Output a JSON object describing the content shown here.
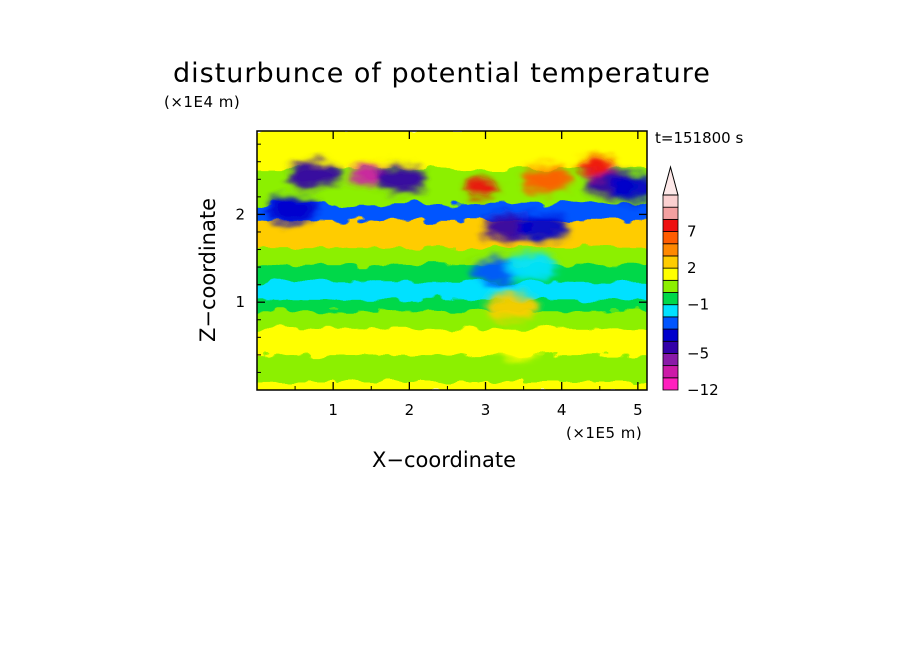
{
  "chart_data": {
    "type": "heatmap",
    "title": "disturbunce of potential temperature",
    "xlabel": "X−coordinate",
    "ylabel": "Z−coordinate",
    "x_unit": "(×1E5 m)",
    "y_unit": "(×1E4 m)",
    "time_label": "t=151800 s",
    "xlim": [
      0,
      5.12
    ],
    "ylim": [
      0,
      2.95
    ],
    "x_ticks": [
      {
        "value": 1,
        "label": "1"
      },
      {
        "value": 2,
        "label": "2"
      },
      {
        "value": 3,
        "label": "3"
      },
      {
        "value": 4,
        "label": "4"
      },
      {
        "value": 5,
        "label": "5"
      }
    ],
    "y_ticks": [
      {
        "value": 1,
        "label": "1"
      },
      {
        "value": 2,
        "label": "2"
      }
    ],
    "colorbar": {
      "levels": [
        -12,
        -10,
        -7,
        -5,
        -4,
        -3,
        -2,
        -1,
        0,
        1,
        2,
        3,
        5,
        7,
        9,
        11
      ],
      "colors": [
        "#ff1fbe",
        "#cc1aa8",
        "#8a1aa8",
        "#3300a8",
        "#0000cc",
        "#0055ff",
        "#00e1ff",
        "#00d84a",
        "#8cf000",
        "#ffff00",
        "#ffcc00",
        "#ff8800",
        "#ff5c00",
        "#ee1010",
        "#f4a0a0",
        "#fbd0d0"
      ],
      "extend": "max",
      "labels": [
        {
          "value": -12,
          "text": "−12"
        },
        {
          "value": -5,
          "text": "−5"
        },
        {
          "value": -1,
          "text": "−1"
        },
        {
          "value": 2,
          "text": "2"
        },
        {
          "value": 7,
          "text": "7"
        }
      ]
    },
    "bands_z": [
      {
        "z": [
          0.0,
          0.12
        ],
        "value": 1.5
      },
      {
        "z": [
          0.12,
          0.42
        ],
        "value": 0.5
      },
      {
        "z": [
          0.42,
          0.72
        ],
        "value": 1.5
      },
      {
        "z": [
          0.72,
          0.92
        ],
        "value": 0.5
      },
      {
        "z": [
          0.92,
          1.05
        ],
        "value": -0.7
      },
      {
        "z": [
          1.05,
          1.25
        ],
        "value": -1.5
      },
      {
        "z": [
          1.25,
          1.45
        ],
        "value": -0.5
      },
      {
        "z": [
          1.45,
          1.65
        ],
        "value": 0.5
      },
      {
        "z": [
          1.65,
          1.95
        ],
        "value": 2.5
      },
      {
        "z": [
          1.95,
          2.15
        ],
        "value": -2.5
      },
      {
        "z": [
          2.15,
          2.55
        ],
        "value": 0.5
      },
      {
        "z": [
          2.55,
          2.95
        ],
        "value": 1.5
      }
    ],
    "features": [
      {
        "x": 0.75,
        "z": 2.45,
        "value": -5
      },
      {
        "x": 1.45,
        "z": 2.45,
        "value": -8
      },
      {
        "x": 1.9,
        "z": 2.4,
        "value": -5
      },
      {
        "x": 0.45,
        "z": 2.05,
        "value": -4
      },
      {
        "x": 4.65,
        "z": 2.35,
        "value": -5
      },
      {
        "x": 4.95,
        "z": 2.3,
        "value": -4
      },
      {
        "x": 2.95,
        "z": 2.3,
        "value": 7
      },
      {
        "x": 4.45,
        "z": 2.55,
        "value": 7
      },
      {
        "x": 3.8,
        "z": 2.4,
        "value": 5
      },
      {
        "x": 3.3,
        "z": 1.85,
        "value": -5
      },
      {
        "x": 3.75,
        "z": 1.85,
        "value": -4
      },
      {
        "x": 3.15,
        "z": 1.35,
        "value": -3
      },
      {
        "x": 3.6,
        "z": 1.4,
        "value": -2
      },
      {
        "x": 3.4,
        "z": 0.5,
        "value": 1
      },
      {
        "x": 3.35,
        "z": 0.95,
        "value": 2
      }
    ]
  }
}
